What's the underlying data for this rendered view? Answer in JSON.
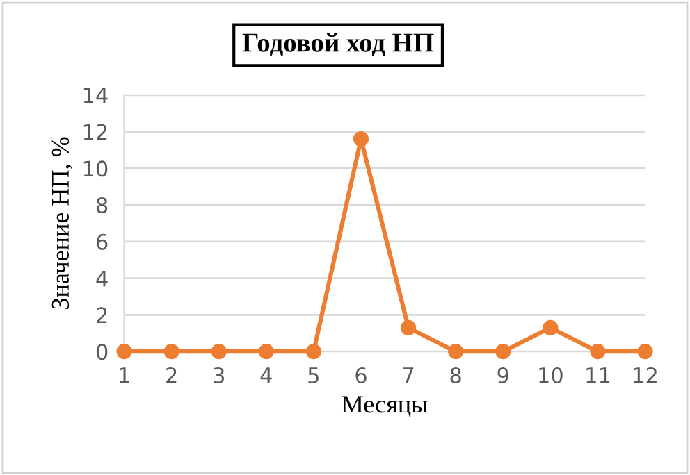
{
  "chart_data": {
    "type": "line",
    "title": "Годовой ход НП",
    "xlabel": "Месяцы",
    "ylabel": "Значение НП, %",
    "categories": [
      "1",
      "2",
      "3",
      "4",
      "5",
      "6",
      "7",
      "8",
      "9",
      "10",
      "11",
      "12"
    ],
    "series": [
      {
        "color": "#ed7d31",
        "values": [
          0,
          0,
          0,
          0,
          0,
          11.6,
          1.3,
          0,
          0,
          1.3,
          0,
          0
        ]
      }
    ],
    "ylim": [
      0,
      14
    ],
    "yticks": [
      0,
      2,
      4,
      6,
      8,
      10,
      12,
      14
    ],
    "grid": "y",
    "marker": "circle",
    "line_style": "solid",
    "legend": false
  }
}
